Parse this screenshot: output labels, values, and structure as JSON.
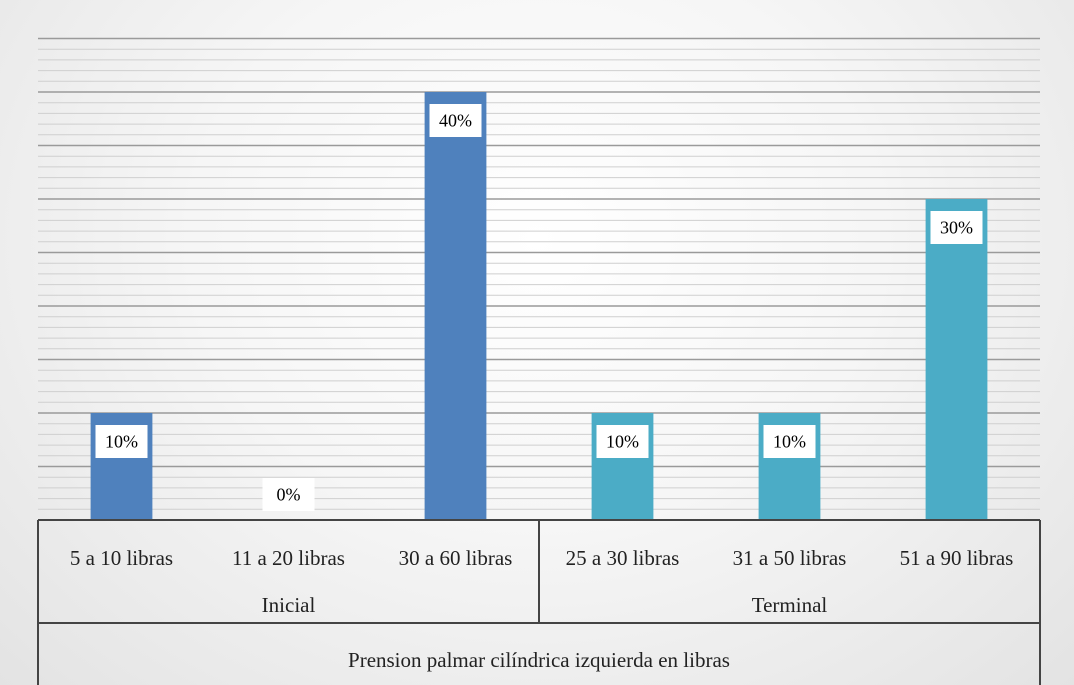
{
  "chart_data": {
    "type": "bar",
    "xlabel": "Prension palmar cilíndrica izquierda en libras",
    "ylim": [
      0,
      45
    ],
    "grid": true,
    "groups": [
      {
        "name": "Inicial",
        "color": "#4f81bd",
        "categories": [
          "5 a 10 libras",
          "11 a 20 libras",
          "30 a 60 libras"
        ],
        "values": [
          10,
          0,
          40
        ],
        "labels": [
          "10%",
          "0%",
          "40%"
        ]
      },
      {
        "name": "Terminal",
        "color": "#4bacc6",
        "categories": [
          "25 a 30 libras",
          "31 a 50 libras",
          "51 a 90 libras"
        ],
        "values": [
          10,
          10,
          30
        ],
        "labels": [
          "10%",
          "10%",
          "30%"
        ]
      }
    ]
  }
}
